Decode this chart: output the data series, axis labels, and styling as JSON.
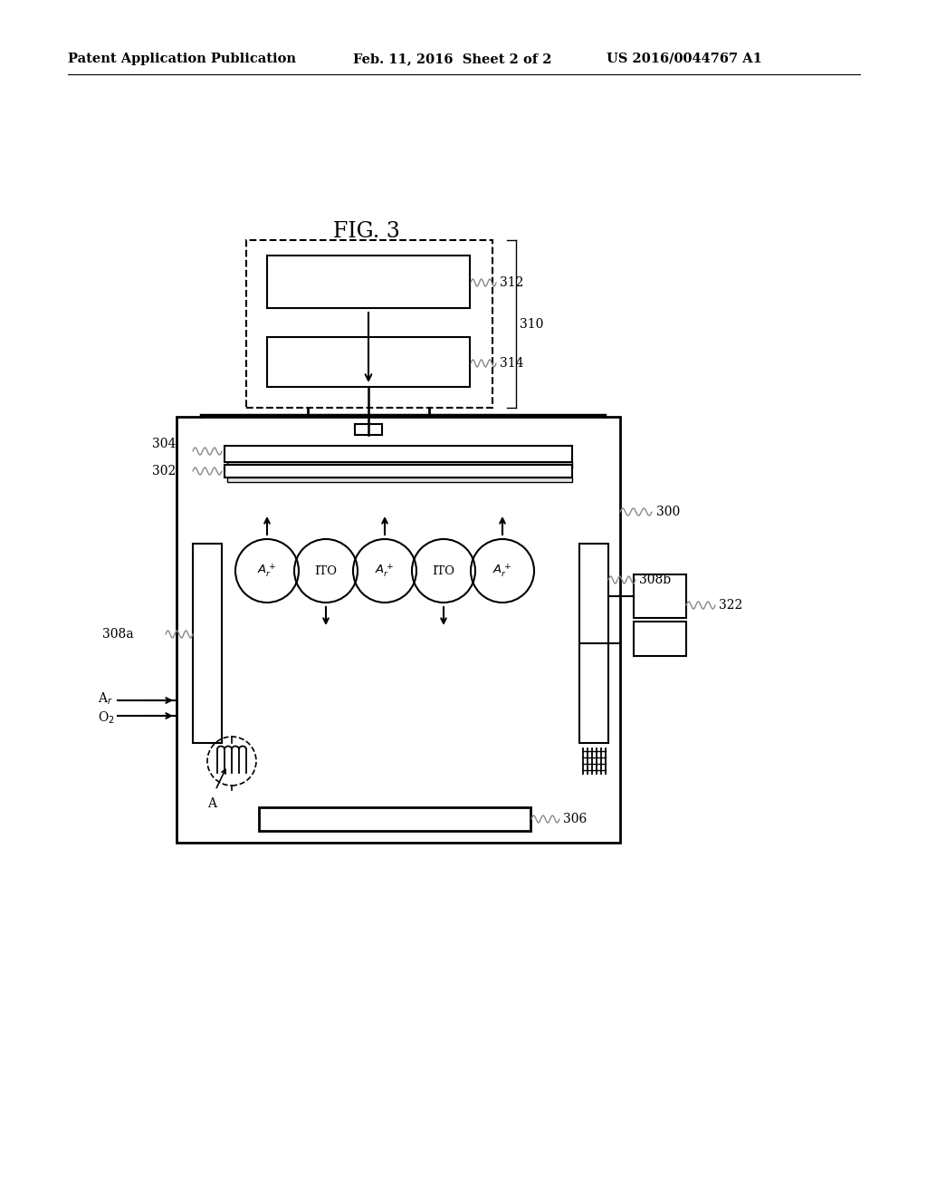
{
  "title": "FIG. 3",
  "header_left": "Patent Application Publication",
  "header_mid": "Feb. 11, 2016  Sheet 2 of 2",
  "header_right": "US 2016/0044767 A1",
  "bg_color": "#ffffff",
  "line_color": "#000000"
}
